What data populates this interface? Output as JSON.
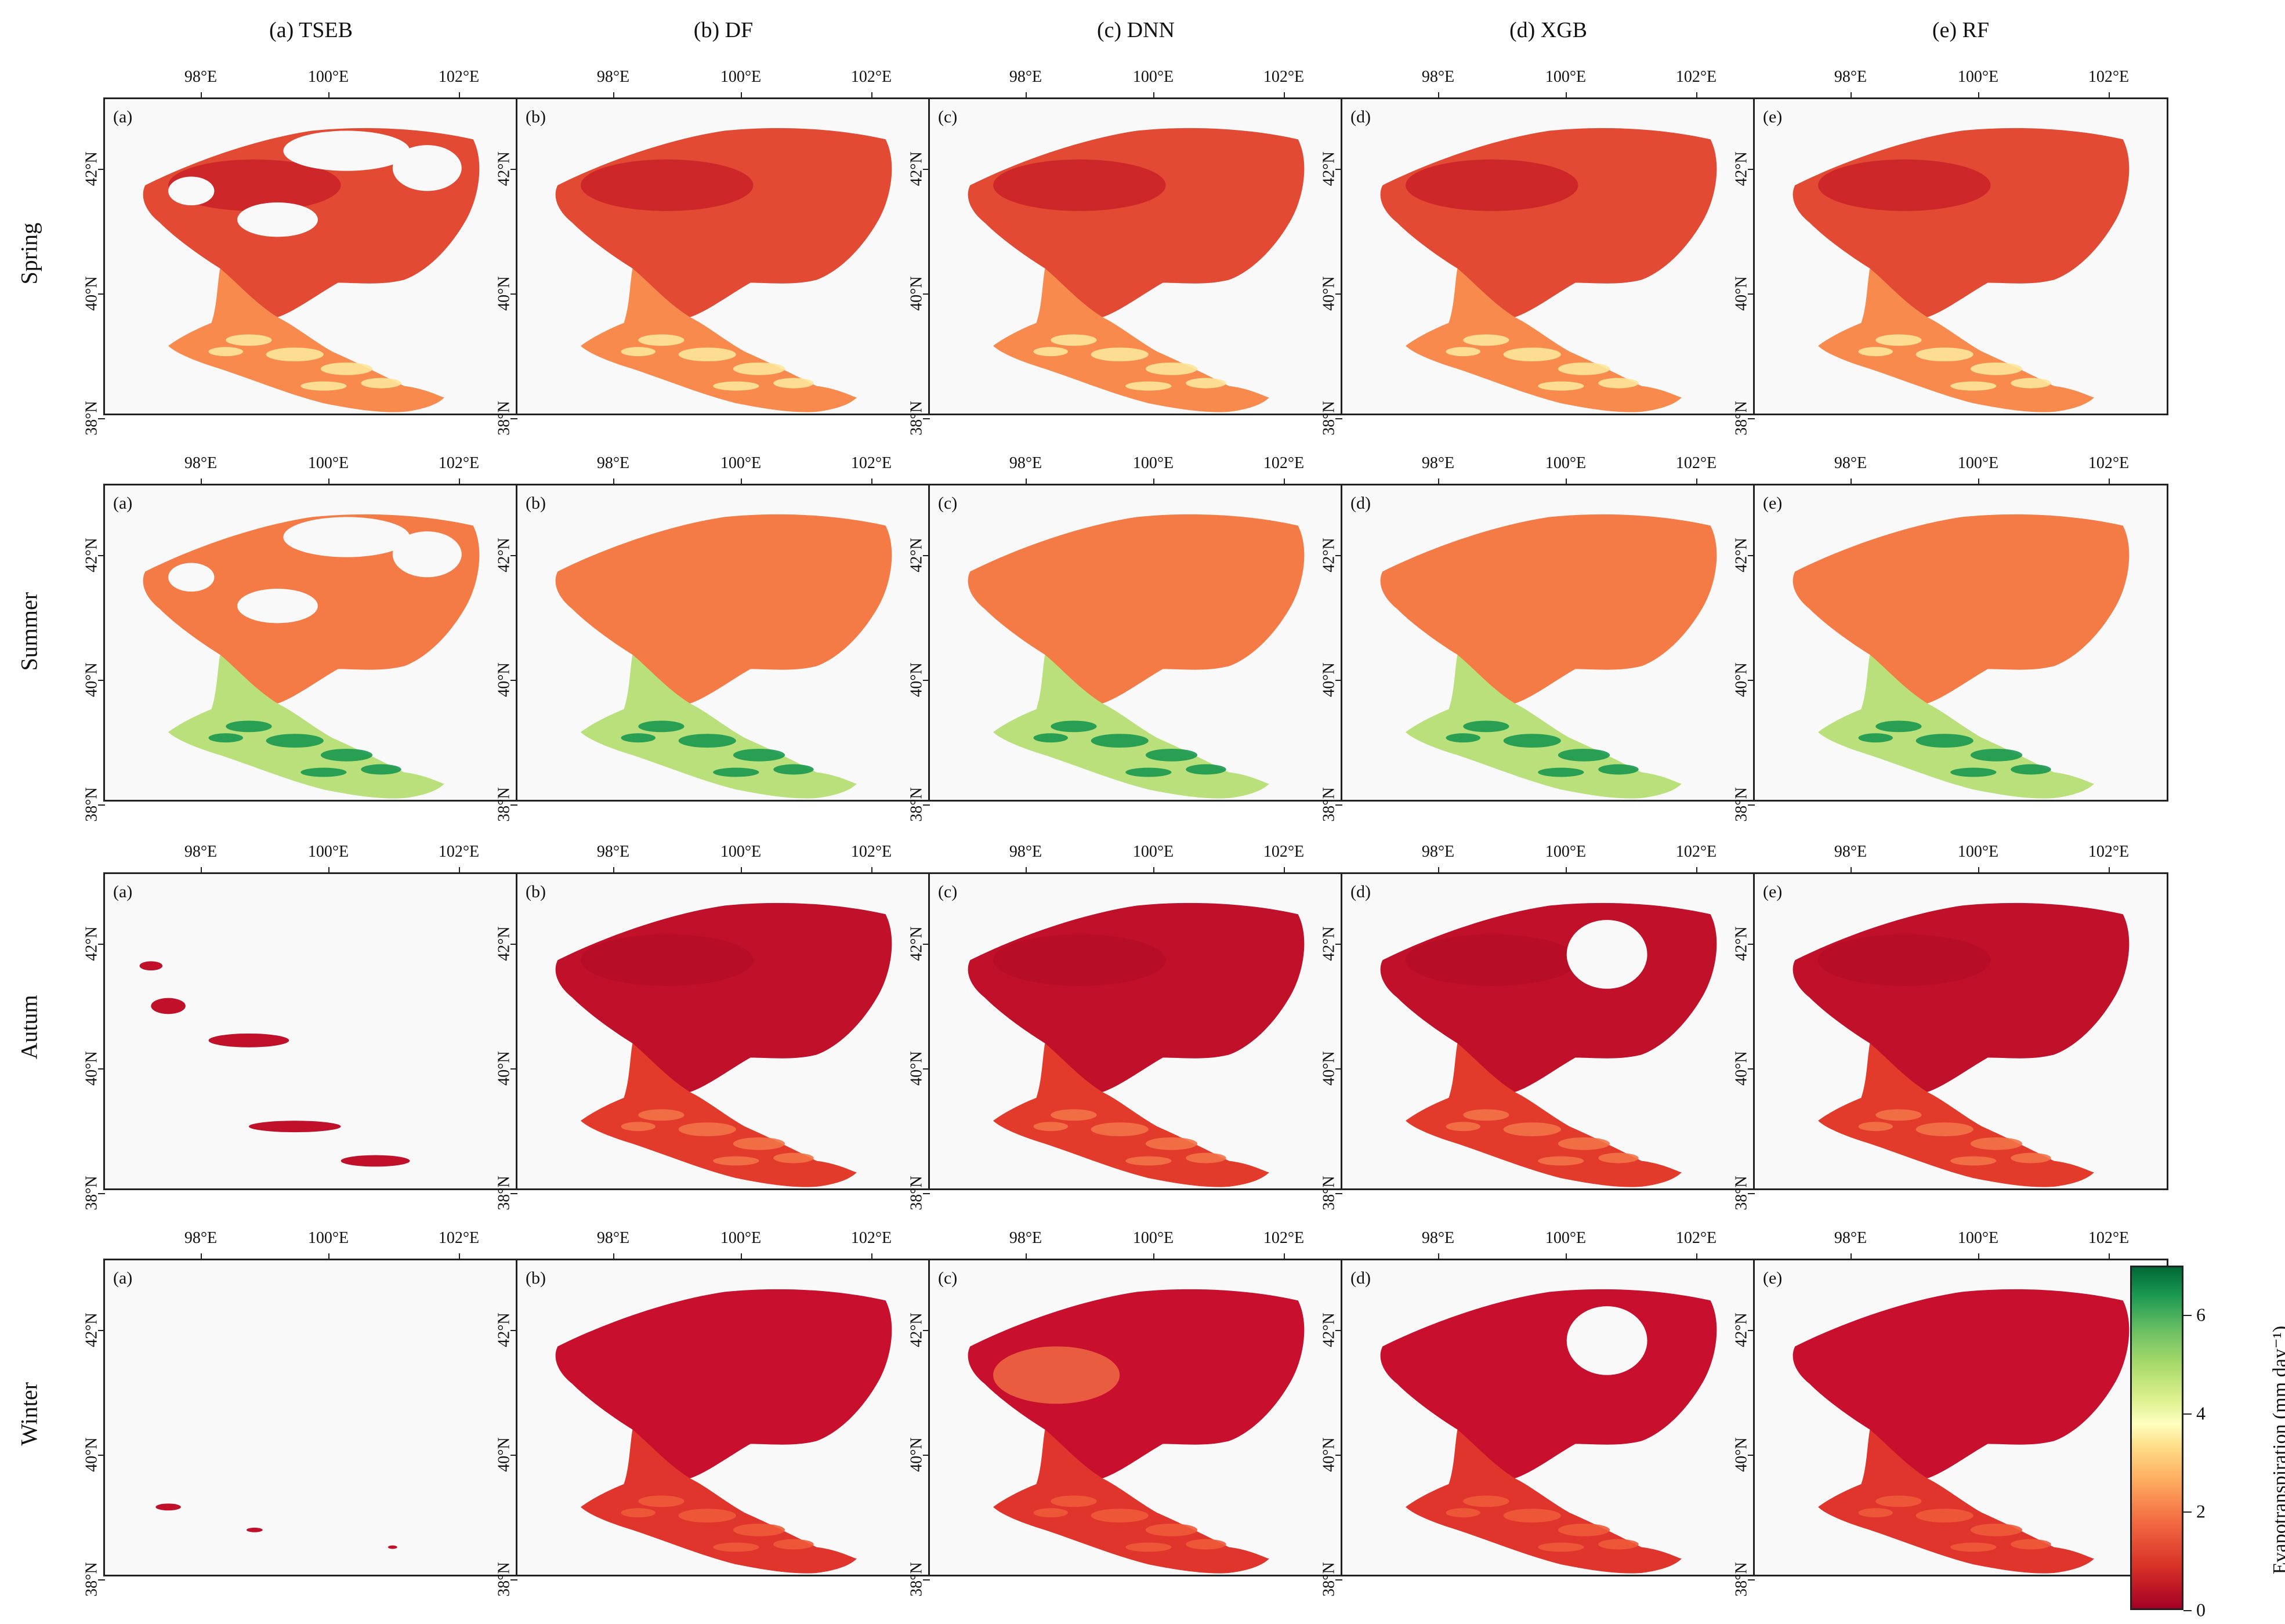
{
  "columns": [
    {
      "title": "(a) TSEB",
      "letter": "(a)"
    },
    {
      "title": "(b) DF",
      "letter": "(b)"
    },
    {
      "title": "(c) DNN",
      "letter": "(c)"
    },
    {
      "title": "(d) XGB",
      "letter": "(d)"
    },
    {
      "title": "(e) RF",
      "letter": "(e)"
    }
  ],
  "rows": [
    {
      "season": "Spring"
    },
    {
      "season": "Summer"
    },
    {
      "season": "Autum"
    },
    {
      "season": "Winter"
    }
  ],
  "x_ticks": [
    "98°E",
    "100°E",
    "102°E"
  ],
  "y_ticks": [
    "42°N",
    "40°N",
    "38°N"
  ],
  "colorbar": {
    "label": "Evapotranspiration (mm day⁻¹)",
    "ticks": [
      "0",
      "2",
      "4",
      "6"
    ],
    "range": [
      0,
      7
    ],
    "colormap": "RdYlGn"
  },
  "panel_values": {
    "tseb_coverage": {
      "spring": "partial",
      "summer": "partial",
      "autum": "sparse",
      "winter": "very sparse"
    },
    "typical_et": {
      "spring": 1.3,
      "summer": 2.0,
      "autum": 0.3,
      "winter": 0.3
    }
  }
}
